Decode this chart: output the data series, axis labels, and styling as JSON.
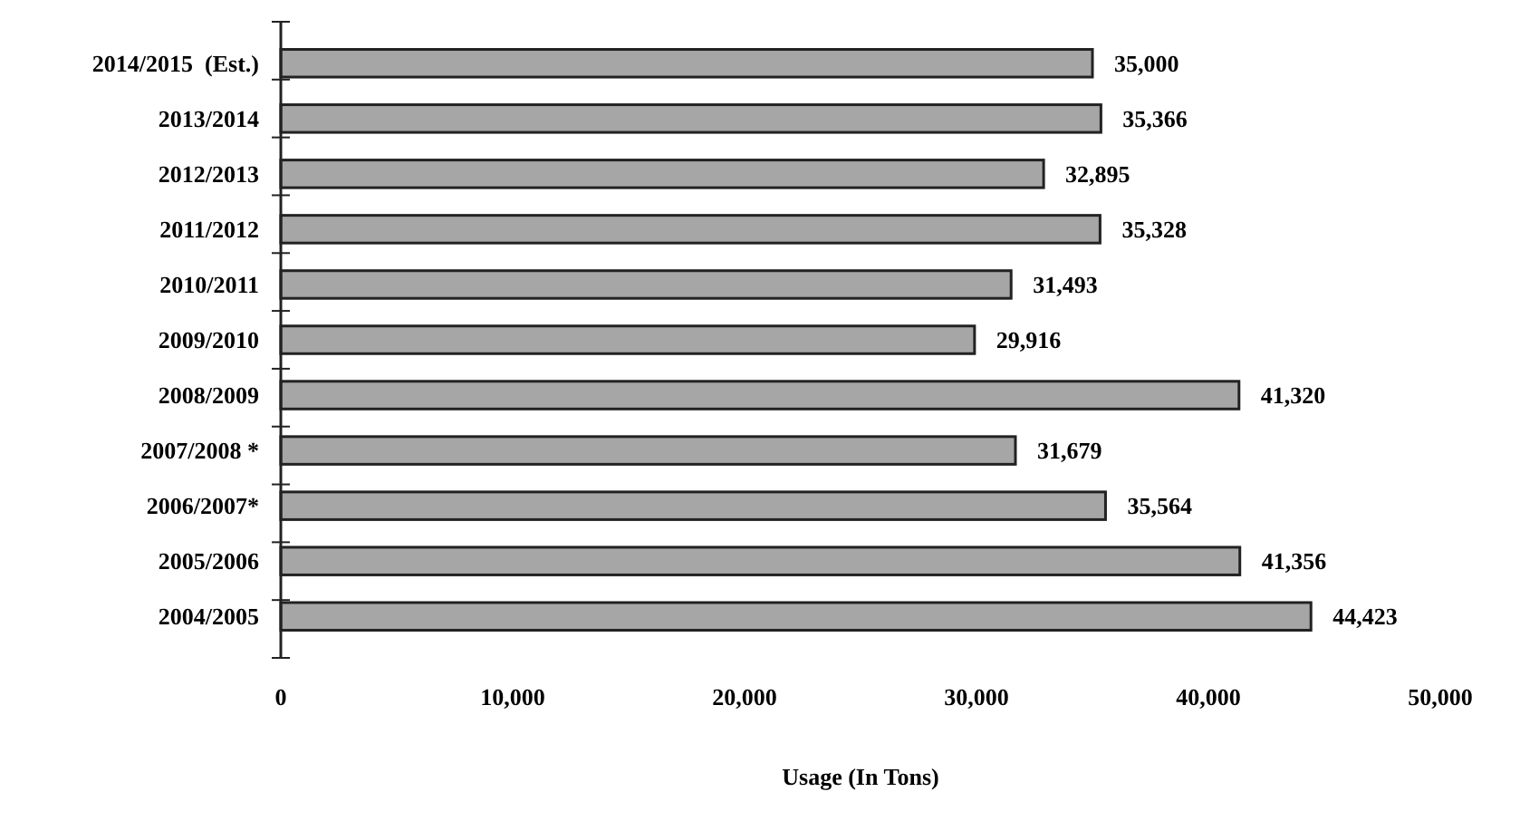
{
  "chart_data": {
    "type": "bar",
    "orientation": "horizontal",
    "xlabel": "Usage (In Tons)",
    "categories": [
      "2014/2015  (Est.)",
      "2013/2014",
      "2012/2013",
      "2011/2012",
      "2010/2011",
      "2009/2010",
      "2008/2009",
      "2007/2008 *",
      "2006/2007*",
      "2005/2006",
      "2004/2005"
    ],
    "values": [
      35000,
      35366,
      32895,
      35328,
      31493,
      29916,
      41320,
      31679,
      35564,
      41356,
      44423
    ],
    "value_labels": [
      "35,000",
      "35,366",
      "32,895",
      "35,328",
      "31,493",
      "29,916",
      "41,320",
      "31,679",
      "35,564",
      "41,356",
      "44,423"
    ],
    "color": "#a6a6a6",
    "grid": false,
    "xlim": [
      0,
      50000
    ],
    "xticks": [
      {
        "value": 0,
        "label": "0"
      },
      {
        "value": 10000,
        "label": "10,000"
      },
      {
        "value": 20000,
        "label": "20,000"
      },
      {
        "value": 30000,
        "label": "30,000"
      },
      {
        "value": 40000,
        "label": "40,000"
      },
      {
        "value": 50000,
        "label": "50,000"
      }
    ]
  }
}
